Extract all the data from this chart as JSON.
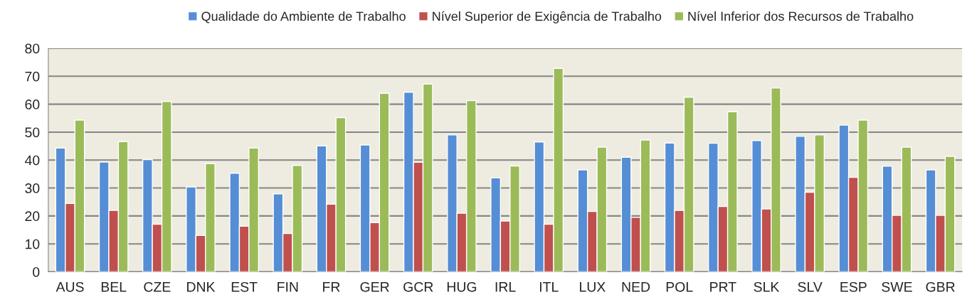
{
  "chart_data": {
    "type": "bar",
    "categories": [
      "AUS",
      "BEL",
      "CZE",
      "DNK",
      "EST",
      "FIN",
      "FR",
      "GER",
      "GCR",
      "HUG",
      "IRL",
      "ITL",
      "LUX",
      "NED",
      "POL",
      "PRT",
      "SLK",
      "SLV",
      "ESP",
      "SWE",
      "GBR"
    ],
    "series": [
      {
        "name": "Qualidade do Ambiente de Trabalho",
        "color": "#558ed5",
        "values": [
          44.3,
          39.3,
          40.2,
          30.4,
          35.3,
          27.9,
          45.1,
          45.4,
          64.3,
          49,
          33.6,
          46.5,
          36.5,
          41,
          46.1,
          46,
          47,
          48.5,
          52.5,
          37.8,
          36.5
        ]
      },
      {
        "name": "Nível Superior de Exigência de Trabalho",
        "color": "#c0504d",
        "values": [
          24.5,
          22,
          17,
          13,
          16.3,
          13.7,
          24.2,
          17.6,
          39.2,
          21,
          18.2,
          17,
          21.6,
          19.5,
          22,
          23.4,
          22.5,
          28.5,
          33.8,
          20.2,
          20.2
        ]
      },
      {
        "name": "Nível Inferior dos Recursos de Trabalho",
        "color": "#9bbb59",
        "values": [
          54.3,
          46.6,
          61,
          38.7,
          44.3,
          38.1,
          55.2,
          63.9,
          67.2,
          61.3,
          37.9,
          72.8,
          44.6,
          47.2,
          62.5,
          57.3,
          65.8,
          49,
          54.3,
          44.6,
          41.3
        ]
      }
    ],
    "ylim": [
      0,
      80
    ],
    "yticks": [
      0,
      10,
      20,
      30,
      40,
      50,
      60,
      70,
      80
    ],
    "grid": "y",
    "legend": "top"
  }
}
